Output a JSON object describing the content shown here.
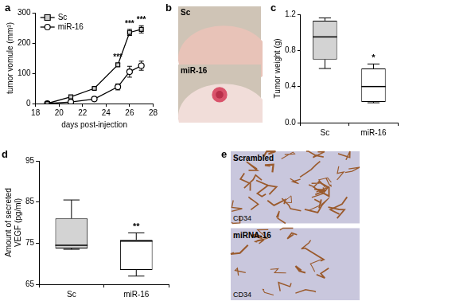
{
  "chart_data": [
    {
      "panel": "a",
      "type": "line",
      "x_label": "days post-injection",
      "y_label": "tumor vomule (mm³)",
      "x": [
        19,
        21,
        23,
        25,
        26,
        27
      ],
      "xlim": [
        18,
        28
      ],
      "xticks": [
        18,
        20,
        22,
        24,
        26,
        28
      ],
      "ylim": [
        0,
        300
      ],
      "yticks": [
        0,
        100,
        200,
        300
      ],
      "grid": false,
      "legend": "upper left",
      "series": [
        {
          "name": "Sc",
          "color": "#000000",
          "marker": "square",
          "values": [
            0,
            22,
            50,
            128,
            235,
            245
          ],
          "errors": [
            2,
            3,
            3,
            5,
            10,
            12
          ]
        },
        {
          "name": "miR-16",
          "color": "#000000",
          "marker": "circle",
          "values": [
            0,
            5,
            15,
            55,
            105,
            125
          ],
          "errors": [
            2,
            2,
            3,
            10,
            18,
            15
          ]
        }
      ],
      "annotations": [
        {
          "x": 25,
          "text": "***"
        },
        {
          "x": 26,
          "text": "***"
        },
        {
          "x": 27,
          "text": "***"
        }
      ]
    },
    {
      "panel": "c",
      "type": "box",
      "y_label": "Tumor weight (g)",
      "categories": [
        "Sc",
        "miR-16"
      ],
      "min": [
        0.6,
        0.22
      ],
      "q1": [
        0.7,
        0.23
      ],
      "median": [
        0.95,
        0.4
      ],
      "q3": [
        1.13,
        0.6
      ],
      "max": [
        1.16,
        0.65
      ],
      "colors": [
        "#d3d3d3",
        "#ffffff"
      ],
      "ylim": [
        0,
        1.2
      ],
      "yticks": [
        {
          "value": 0,
          "label": "0.0"
        },
        0.4,
        0.8,
        1.2
      ],
      "grid": false,
      "annotations": [
        {
          "category": "miR-16",
          "text": "*"
        }
      ]
    },
    {
      "panel": "d",
      "type": "box",
      "y_label": [
        "Amount of secreted",
        "VEGF (pg/ml)"
      ],
      "categories": [
        "Sc",
        "miR-16"
      ],
      "min": [
        73.5,
        67
      ],
      "q1": [
        73.7,
        68.5
      ],
      "median": [
        74.5,
        75.5
      ],
      "q3": [
        81,
        75.8
      ],
      "max": [
        85.5,
        77.5
      ],
      "colors": [
        "#d3d3d3",
        "#ffffff"
      ],
      "ylim": [
        65,
        95
      ],
      "yticks": [
        65,
        75,
        85,
        95
      ],
      "grid": false,
      "annotations": [
        {
          "category": "miR-16",
          "text": "**"
        }
      ]
    }
  ],
  "photos": [
    {
      "panel": "b",
      "images": [
        {
          "label": "Sc"
        },
        {
          "label": "miR-16"
        }
      ]
    },
    {
      "panel": "e",
      "images": [
        {
          "label": "Scrambled",
          "stain": "CD34"
        },
        {
          "label": "miRNA-16",
          "stain": "CD34"
        }
      ]
    }
  ]
}
